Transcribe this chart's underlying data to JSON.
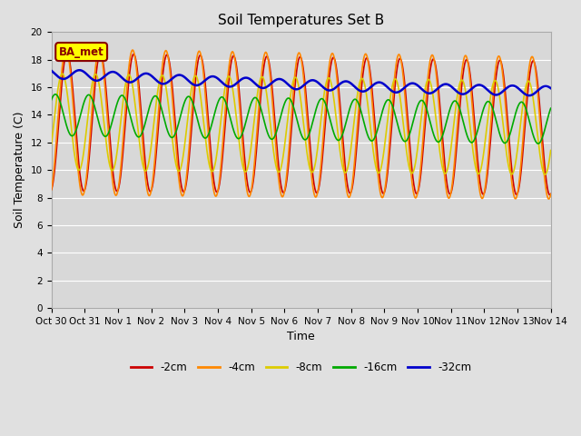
{
  "title": "Soil Temperatures Set B",
  "xlabel": "Time",
  "ylabel": "Soil Temperature (C)",
  "ylim": [
    0,
    20
  ],
  "yticks": [
    0,
    2,
    4,
    6,
    8,
    10,
    12,
    14,
    16,
    18,
    20
  ],
  "xtick_labels": [
    "Oct 30",
    "Oct 31",
    "Nov 1",
    "Nov 2",
    "Nov 3",
    "Nov 4",
    "Nov 5",
    "Nov 6",
    "Nov 7",
    "Nov 8",
    "Nov 9",
    "Nov 10",
    "Nov 11",
    "Nov 12",
    "Nov 13",
    "Nov 14"
  ],
  "n_days": 15,
  "line_colors": [
    "#cc0000",
    "#ff8800",
    "#ddcc00",
    "#00aa00",
    "#0000cc"
  ],
  "line_labels": [
    "-2cm",
    "-4cm",
    "-8cm",
    "-16cm",
    "-32cm"
  ],
  "line_widths": [
    1.2,
    1.2,
    1.2,
    1.2,
    1.8
  ],
  "fig_bg_color": "#e0e0e0",
  "plot_bg_color": "#d8d8d8",
  "annotation_text": "BA_met",
  "annotation_bg": "#ffff00",
  "annotation_border": "#880000"
}
